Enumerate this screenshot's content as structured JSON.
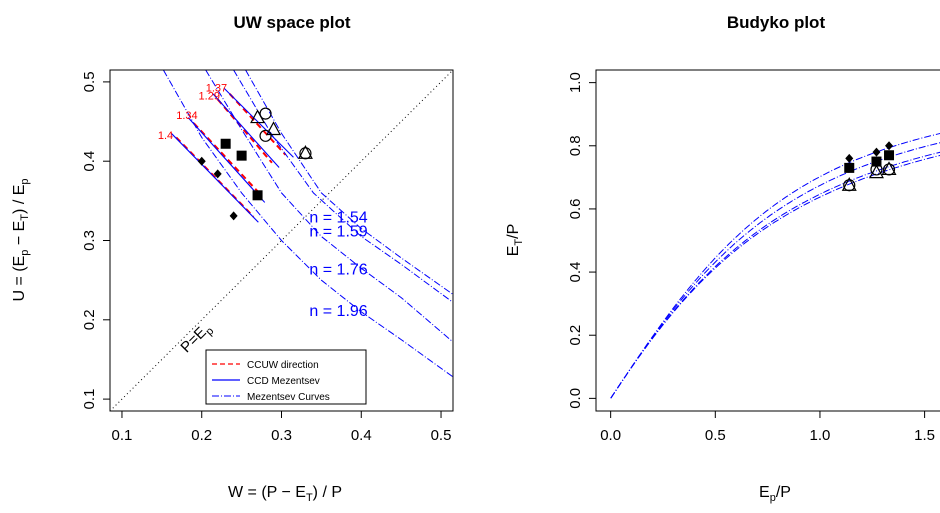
{
  "chart_data": [
    {
      "type": "line",
      "title": "UW space plot",
      "xlabel": "W  = (P − E_T) / P",
      "ylabel": "U = (E_p − E_T) / E_p",
      "xlim": [
        0.085,
        0.515
      ],
      "ylim": [
        0.085,
        0.515
      ],
      "xticks": [
        "0.1",
        "0.2",
        "0.3",
        "0.4",
        "0.5"
      ],
      "yticks": [
        "0.1",
        "0.2",
        "0.3",
        "0.4",
        "0.5"
      ],
      "grid": false,
      "one_to_one_label": "P=E_p",
      "mezentsev_n_labels": [
        {
          "text": "n = 1.54",
          "x": 0.335,
          "y": 0.323
        },
        {
          "text": "n = 1.59",
          "x": 0.335,
          "y": 0.305
        },
        {
          "text": "n = 1.76",
          "x": 0.335,
          "y": 0.257
        },
        {
          "text": "n = 1.96",
          "x": 0.335,
          "y": 0.205
        }
      ],
      "ccuw_ratio_labels": [
        {
          "text": "1.37",
          "x": 0.205,
          "y": 0.488
        },
        {
          "text": "1.29",
          "x": 0.196,
          "y": 0.478
        },
        {
          "text": "1.34",
          "x": 0.168,
          "y": 0.453
        },
        {
          "text": "1.4",
          "x": 0.145,
          "y": 0.428
        }
      ],
      "series": [
        {
          "name": "CCUW direction",
          "style": "dashed",
          "color": "#ff0000",
          "segments": [
            [
              [
                0.235,
                0.485
              ],
              [
                0.305,
                0.408
              ]
            ],
            [
              [
                0.22,
                0.478
              ],
              [
                0.288,
                0.398
              ]
            ],
            [
              [
                0.19,
                0.448
              ],
              [
                0.27,
                0.362
              ]
            ],
            [
              [
                0.168,
                0.43
              ],
              [
                0.265,
                0.33
              ]
            ]
          ]
        },
        {
          "name": "CCD Mezentsev",
          "style": "solid",
          "color": "#0000ff",
          "segments": [
            [
              [
                0.228,
                0.492
              ],
              [
                0.315,
                0.405
              ]
            ],
            [
              [
                0.214,
                0.485
              ],
              [
                0.297,
                0.392
              ]
            ],
            [
              [
                0.183,
                0.455
              ],
              [
                0.279,
                0.348
              ]
            ],
            [
              [
                0.162,
                0.435
              ],
              [
                0.271,
                0.323
              ]
            ]
          ]
        },
        {
          "name": "Mezentsev Curves",
          "style": "dotdash",
          "color": "#0000ff",
          "curves": [
            [
              [
                0.255,
                0.515
              ],
              [
                0.3,
                0.435
              ],
              [
                0.35,
                0.36
              ],
              [
                0.4,
                0.315
              ],
              [
                0.45,
                0.278
              ],
              [
                0.515,
                0.232
              ]
            ],
            [
              [
                0.24,
                0.515
              ],
              [
                0.29,
                0.43
              ],
              [
                0.34,
                0.36
              ],
              [
                0.4,
                0.305
              ],
              [
                0.45,
                0.27
              ],
              [
                0.515,
                0.222
              ]
            ],
            [
              [
                0.205,
                0.515
              ],
              [
                0.25,
                0.44
              ],
              [
                0.3,
                0.36
              ],
              [
                0.35,
                0.305
              ],
              [
                0.4,
                0.265
              ],
              [
                0.45,
                0.228
              ],
              [
                0.515,
                0.172
              ]
            ],
            [
              [
                0.152,
                0.515
              ],
              [
                0.2,
                0.43
              ],
              [
                0.25,
                0.36
              ],
              [
                0.3,
                0.3
              ],
              [
                0.35,
                0.25
              ],
              [
                0.4,
                0.21
              ],
              [
                0.45,
                0.175
              ],
              [
                0.515,
                0.128
              ]
            ]
          ]
        }
      ],
      "points": [
        {
          "marker": "triangle",
          "x": 0.27,
          "y": 0.455
        },
        {
          "marker": "triangle",
          "x": 0.29,
          "y": 0.44
        },
        {
          "marker": "triangle",
          "x": 0.33,
          "y": 0.41
        },
        {
          "marker": "circle",
          "x": 0.28,
          "y": 0.46
        },
        {
          "marker": "circle",
          "x": 0.28,
          "y": 0.432
        },
        {
          "marker": "circle",
          "x": 0.33,
          "y": 0.41
        },
        {
          "marker": "square",
          "x": 0.23,
          "y": 0.422
        },
        {
          "marker": "square",
          "x": 0.25,
          "y": 0.407
        },
        {
          "marker": "square",
          "x": 0.27,
          "y": 0.357
        },
        {
          "marker": "diamond",
          "x": 0.2,
          "y": 0.4
        },
        {
          "marker": "diamond",
          "x": 0.22,
          "y": 0.384
        },
        {
          "marker": "diamond",
          "x": 0.24,
          "y": 0.331
        }
      ],
      "legend": {
        "position": "bottom-right",
        "entries": [
          "CCUW direction",
          "CCD Mezentsev",
          "Mezentsev Curves"
        ]
      }
    },
    {
      "type": "line",
      "title": "Budyko plot",
      "xlabel": "E_p/P",
      "ylabel": "E_T/P",
      "xlim": [
        -0.07,
        1.65
      ],
      "ylim": [
        -0.04,
        1.04
      ],
      "xticks": [
        "0.0",
        "0.5",
        "1.0",
        "1.5"
      ],
      "yticks": [
        "0.0",
        "0.2",
        "0.4",
        "0.6",
        "0.8",
        "1.0"
      ],
      "grid": false,
      "series": [
        {
          "name": "n = 1.54",
          "style": "dotdash",
          "color": "#0000ff",
          "n": 1.54
        },
        {
          "name": "n = 1.59",
          "style": "dotdash",
          "color": "#0000ff",
          "n": 1.59
        },
        {
          "name": "n = 1.76",
          "style": "dotdash",
          "color": "#0000ff",
          "n": 1.76
        },
        {
          "name": "n = 1.96",
          "style": "dotdash",
          "color": "#0000ff",
          "n": 1.96
        }
      ],
      "points": [
        {
          "marker": "triangle",
          "x": 1.14,
          "y": 0.675
        },
        {
          "marker": "triangle",
          "x": 1.27,
          "y": 0.715
        },
        {
          "marker": "triangle",
          "x": 1.33,
          "y": 0.725
        },
        {
          "marker": "circle",
          "x": 1.14,
          "y": 0.675
        },
        {
          "marker": "circle",
          "x": 1.27,
          "y": 0.725
        },
        {
          "marker": "circle",
          "x": 1.33,
          "y": 0.725
        },
        {
          "marker": "square",
          "x": 1.14,
          "y": 0.73
        },
        {
          "marker": "square",
          "x": 1.27,
          "y": 0.75
        },
        {
          "marker": "square",
          "x": 1.33,
          "y": 0.77
        },
        {
          "marker": "diamond",
          "x": 1.14,
          "y": 0.76
        },
        {
          "marker": "diamond",
          "x": 1.27,
          "y": 0.78
        },
        {
          "marker": "diamond",
          "x": 1.33,
          "y": 0.8
        }
      ]
    }
  ]
}
